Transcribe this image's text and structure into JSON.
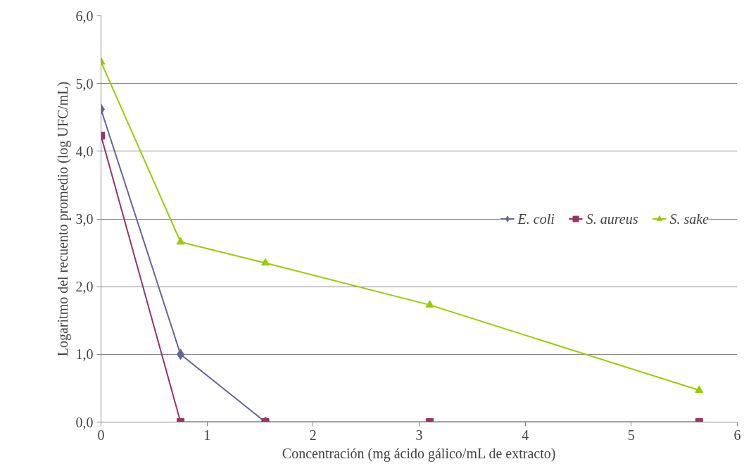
{
  "chart_data": {
    "type": "line",
    "xlabel": "Concentración (mg ácido gálico/mL de extracto)",
    "ylabel": "Logaritmo del recuento promedio (log UFC/mL)",
    "x": [
      0,
      0.75,
      1.55,
      3.1,
      5.64
    ],
    "series": [
      {
        "name": "E. coli",
        "color": "#666699",
        "marker": "diamond",
        "values": [
          4.62,
          1.0,
          0,
          null,
          null
        ]
      },
      {
        "name": "S. aureus",
        "color": "#993366",
        "marker": "square",
        "values": [
          4.23,
          0,
          0,
          0,
          0
        ]
      },
      {
        "name": "S. sake",
        "color": "#99cc00",
        "marker": "triangle",
        "values": [
          5.32,
          2.66,
          2.35,
          1.73,
          0.47
        ]
      }
    ],
    "xlim": [
      0,
      6
    ],
    "xticks": [
      0,
      1,
      2,
      3,
      4,
      5,
      6
    ],
    "ylim": [
      0,
      6
    ],
    "yticks": [
      {
        "value": 0,
        "label": "0,0"
      },
      {
        "value": 1,
        "label": "1,0"
      },
      {
        "value": 2,
        "label": "2,0"
      },
      {
        "value": 3,
        "label": "3,0"
      },
      {
        "value": 4,
        "label": "4,0"
      },
      {
        "value": 5,
        "label": "5,0"
      },
      {
        "value": 6,
        "label": "6,0"
      }
    ],
    "grid": "y",
    "legend": "right",
    "line_style": "solid"
  }
}
